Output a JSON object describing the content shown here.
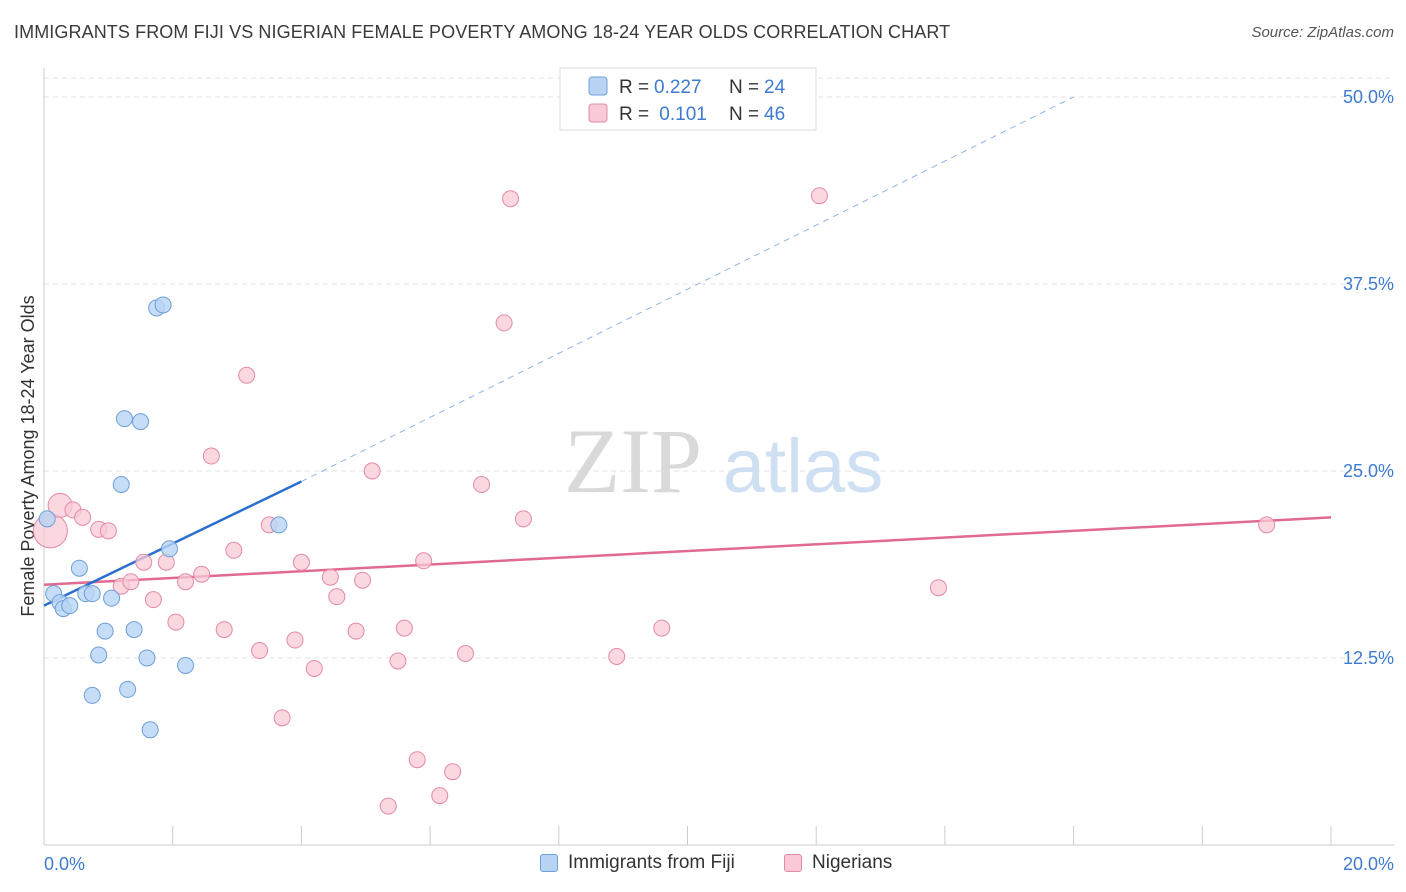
{
  "header": {
    "title": "IMMIGRANTS FROM FIJI VS NIGERIAN FEMALE POVERTY AMONG 18-24 YEAR OLDS CORRELATION CHART",
    "source": "Source: ZipAtlas.com"
  },
  "watermark": {
    "zip": "ZIP",
    "atlas": "atlas"
  },
  "legend_top": {
    "rows": [
      {
        "r_label": "R = ",
        "r_value": "0.227",
        "n_label": "N = ",
        "n_value": "24"
      },
      {
        "r_label": "R = ",
        "r_value": " 0.101",
        "n_label": "N = ",
        "n_value": "46"
      }
    ]
  },
  "chart_data": {
    "type": "scatter",
    "title": "IMMIGRANTS FROM FIJI VS NIGERIAN FEMALE POVERTY AMONG 18-24 YEAR OLDS CORRELATION CHART",
    "xlabel": "",
    "ylabel": "Female Poverty Among 18-24 Year Olds",
    "xlim": [
      0,
      20
    ],
    "ylim": [
      0,
      50
    ],
    "x_tick_labels": [
      "0.0%",
      "20.0%"
    ],
    "y_tick_labels": [
      "12.5%",
      "25.0%",
      "37.5%",
      "50.0%"
    ],
    "y_ticks": [
      12.5,
      25.0,
      37.5,
      50.0
    ],
    "grid": true,
    "legend_position": "top-center",
    "colors": {
      "fiji_fill": "#b8d4f5",
      "fiji_stroke": "#6f9fd8",
      "fiji_line": "#2a6fcf",
      "nigerian_fill": "#f9c9d6",
      "nigerian_stroke": "#e48aa6",
      "nigerian_line": "#e06a92",
      "tick_text": "#3d7bd1"
    },
    "series": [
      {
        "name": "Immigrants from Fiji",
        "r": 0.227,
        "n": 24,
        "points": [
          [
            0.05,
            21.8
          ],
          [
            0.15,
            16.8
          ],
          [
            0.25,
            16.2
          ],
          [
            0.3,
            15.8
          ],
          [
            0.4,
            16.0
          ],
          [
            0.55,
            18.5
          ],
          [
            0.65,
            16.8
          ],
          [
            0.75,
            16.8
          ],
          [
            0.75,
            10.0
          ],
          [
            0.85,
            12.7
          ],
          [
            0.95,
            14.3
          ],
          [
            1.05,
            16.5
          ],
          [
            1.25,
            28.5
          ],
          [
            1.3,
            10.4
          ],
          [
            1.4,
            14.4
          ],
          [
            1.5,
            28.3
          ],
          [
            1.6,
            12.5
          ],
          [
            1.65,
            7.7
          ],
          [
            1.75,
            35.9
          ],
          [
            1.85,
            36.1
          ],
          [
            1.95,
            19.8
          ],
          [
            2.2,
            12.0
          ],
          [
            3.65,
            21.4
          ],
          [
            1.2,
            24.1
          ]
        ],
        "trend": {
          "x0": 0.0,
          "y0": 16.0,
          "x1": 4.0,
          "y1": 24.3
        },
        "trend_extended": {
          "x0": 4.0,
          "y0": 24.3,
          "x1": 16.0,
          "y1": 50.0
        }
      },
      {
        "name": "Nigerians",
        "r": 0.101,
        "n": 46,
        "points": [
          [
            0.1,
            21.0
          ],
          [
            0.25,
            22.7
          ],
          [
            0.45,
            22.4
          ],
          [
            0.6,
            21.9
          ],
          [
            0.85,
            21.1
          ],
          [
            1.0,
            21.0
          ],
          [
            1.2,
            17.3
          ],
          [
            1.35,
            17.6
          ],
          [
            1.55,
            18.9
          ],
          [
            1.7,
            16.4
          ],
          [
            1.9,
            18.9
          ],
          [
            2.05,
            14.9
          ],
          [
            2.2,
            17.6
          ],
          [
            2.45,
            18.1
          ],
          [
            2.6,
            26.0
          ],
          [
            2.8,
            14.4
          ],
          [
            2.95,
            19.7
          ],
          [
            3.15,
            31.4
          ],
          [
            3.35,
            13.0
          ],
          [
            3.5,
            21.4
          ],
          [
            3.7,
            8.5
          ],
          [
            3.9,
            13.7
          ],
          [
            4.0,
            18.9
          ],
          [
            4.2,
            11.8
          ],
          [
            4.45,
            17.9
          ],
          [
            4.55,
            16.6
          ],
          [
            4.85,
            14.3
          ],
          [
            4.95,
            17.7
          ],
          [
            5.1,
            25.0
          ],
          [
            5.35,
            2.6
          ],
          [
            5.5,
            12.3
          ],
          [
            5.6,
            14.5
          ],
          [
            5.8,
            5.7
          ],
          [
            5.9,
            19.0
          ],
          [
            6.15,
            3.3
          ],
          [
            6.35,
            4.9
          ],
          [
            6.55,
            12.8
          ],
          [
            6.8,
            24.1
          ],
          [
            7.15,
            34.9
          ],
          [
            7.25,
            43.2
          ],
          [
            7.45,
            21.8
          ],
          [
            8.9,
            12.6
          ],
          [
            9.6,
            14.5
          ],
          [
            12.05,
            43.4
          ],
          [
            13.9,
            17.2
          ],
          [
            19.0,
            21.4
          ]
        ],
        "trend": {
          "x0": 0.0,
          "y0": 17.4,
          "x1": 20.0,
          "y1": 21.9
        }
      }
    ]
  },
  "legend_bottom": {
    "items": [
      {
        "label": "Immigrants from Fiji"
      },
      {
        "label": "Nigerians"
      }
    ]
  }
}
